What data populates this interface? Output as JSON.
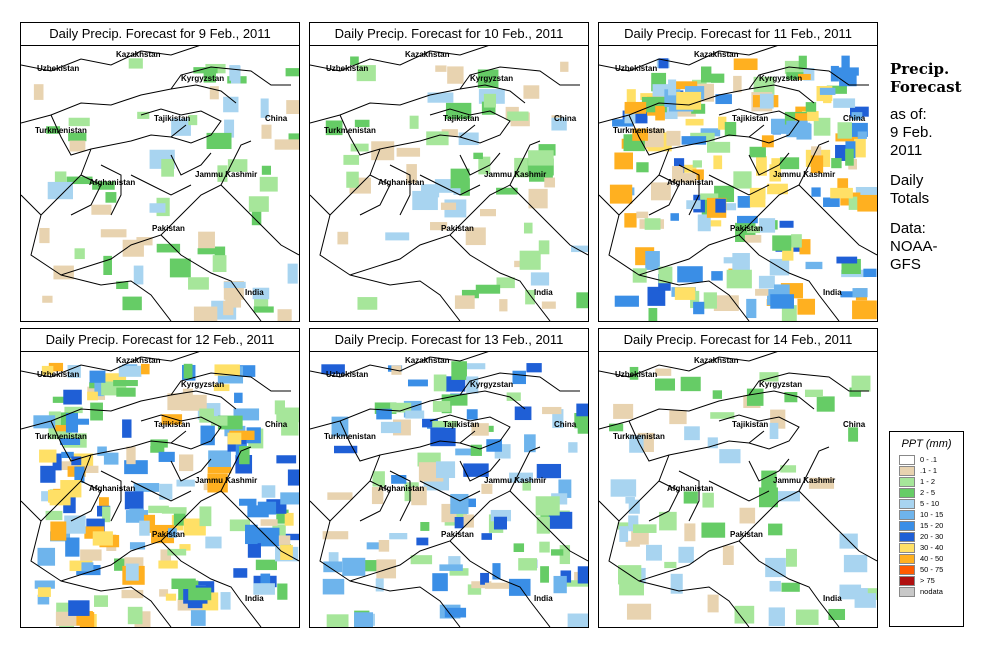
{
  "panels": [
    {
      "title": "Daily Precip. Forecast for  9 Feb., 2011",
      "precip_level": "light"
    },
    {
      "title": "Daily Precip. Forecast for  10 Feb., 2011",
      "precip_level": "light"
    },
    {
      "title": "Daily Precip. Forecast for  11 Feb., 2011",
      "precip_level": "heavy"
    },
    {
      "title": "Daily Precip. Forecast for  12 Feb., 2011",
      "precip_level": "heavy"
    },
    {
      "title": "Daily Precip. Forecast for  13 Feb., 2011",
      "precip_level": "moderate"
    },
    {
      "title": "Daily Precip. Forecast for  14 Feb., 2011",
      "precip_level": "light"
    }
  ],
  "map_labels": {
    "uzbekistan": "Uzbekistan",
    "kazakhstan": "Kazakhstan",
    "kyrgyzstan": "Kyrgyzstan",
    "tajikistan": "Tajikistan",
    "turkmenistan": "Turkmenistan",
    "china": "China",
    "afghanistan": "Afghanistan",
    "jammu_kashmir": "Jammu Kashmir",
    "pakistan": "Pakistan",
    "india": "India"
  },
  "side_info": {
    "heading_line1": "Precip.",
    "heading_line2": "Forecast",
    "asof_line1": "as of:",
    "asof_line2": "9 Feb.",
    "asof_line3": "2011",
    "daily_line1": "Daily",
    "daily_line2": "Totals",
    "data_line1": "Data:",
    "data_line2": "NOAA-",
    "data_line3": "GFS"
  },
  "legend": {
    "title": "PPT (mm)",
    "items": [
      {
        "label": "0 - .1",
        "color": "#ffffff"
      },
      {
        "label": ".1 - 1",
        "color": "#e8d3b0"
      },
      {
        "label": "1 - 2",
        "color": "#a6e69a"
      },
      {
        "label": "2 - 5",
        "color": "#66cc66"
      },
      {
        "label": "5 - 10",
        "color": "#a8d4f0"
      },
      {
        "label": "10 - 15",
        "color": "#6eb4ec"
      },
      {
        "label": "15 - 20",
        "color": "#3a8ee6"
      },
      {
        "label": "20 - 30",
        "color": "#1f5fd6"
      },
      {
        "label": "30 - 40",
        "color": "#ffe066"
      },
      {
        "label": "40 - 50",
        "color": "#ffb020"
      },
      {
        "label": "50 - 75",
        "color": "#ff5a00"
      },
      {
        "label": "> 75",
        "color": "#b01010"
      },
      {
        "label": "nodata",
        "color": "#c8c8c8"
      }
    ]
  }
}
